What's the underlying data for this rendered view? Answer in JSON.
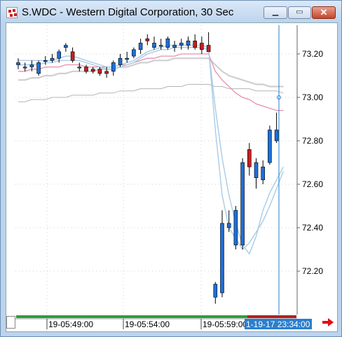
{
  "window": {
    "title": "S.WDC - Western Digital Corporation, 30 Sec",
    "minimize_glyph": "▁",
    "maximize_glyph": "▭",
    "close_glyph": "✕"
  },
  "colors": {
    "up_candle": "#1e6fd6",
    "down_candle": "#c81e1e",
    "ma_fast": "#a9cbe6",
    "ma_pink": "#e58fb0",
    "ma_grey": "#cfcfcf",
    "ma_darkgrey": "#b5b5b5",
    "cursor_line": "#2a7fcf",
    "cursor_label_bg": "#2a7fcf",
    "timebar_green": "#2e9e3a",
    "timebar_red": "#b02020"
  },
  "icons": {
    "scroll_right": "right-arrow-icon",
    "app": "app-icon"
  },
  "chart_data": {
    "type": "candlestick",
    "y_ticks": [
      "73.20",
      "73.00",
      "72.80",
      "72.60",
      "72.40",
      "72.20"
    ],
    "ylim": [
      72.02,
      73.32
    ],
    "x_ticks": [
      "19-05:49:00",
      "19-05:54:00",
      "19-05:59:00"
    ],
    "cursor_label": "1-19-17 23:34:00",
    "grid": true,
    "candles": [
      {
        "o": 73.15,
        "h": 73.18,
        "l": 73.13,
        "c": 73.16
      },
      {
        "o": 73.14,
        "h": 73.16,
        "l": 73.12,
        "c": 73.14
      },
      {
        "o": 73.14,
        "h": 73.17,
        "l": 73.12,
        "c": 73.15
      },
      {
        "o": 73.11,
        "h": 73.17,
        "l": 73.1,
        "c": 73.16
      },
      {
        "o": 73.17,
        "h": 73.19,
        "l": 73.15,
        "c": 73.17
      },
      {
        "o": 73.17,
        "h": 73.2,
        "l": 73.16,
        "c": 73.18
      },
      {
        "o": 73.18,
        "h": 73.22,
        "l": 73.16,
        "c": 73.21
      },
      {
        "o": 73.23,
        "h": 73.25,
        "l": 73.21,
        "c": 73.24
      },
      {
        "o": 73.21,
        "h": 73.23,
        "l": 73.16,
        "c": 73.17
      },
      {
        "o": 73.14,
        "h": 73.16,
        "l": 73.12,
        "c": 73.14
      },
      {
        "o": 73.14,
        "h": 73.15,
        "l": 73.11,
        "c": 73.12
      },
      {
        "o": 73.13,
        "h": 73.14,
        "l": 73.11,
        "c": 73.12
      },
      {
        "o": 73.13,
        "h": 73.14,
        "l": 73.1,
        "c": 73.11
      },
      {
        "o": 73.12,
        "h": 73.14,
        "l": 73.09,
        "c": 73.11
      },
      {
        "o": 73.12,
        "h": 73.17,
        "l": 73.1,
        "c": 73.16
      },
      {
        "o": 73.15,
        "h": 73.2,
        "l": 73.14,
        "c": 73.18
      },
      {
        "o": 73.18,
        "h": 73.21,
        "l": 73.16,
        "c": 73.18
      },
      {
        "o": 73.19,
        "h": 73.23,
        "l": 73.18,
        "c": 73.22
      },
      {
        "o": 73.22,
        "h": 73.27,
        "l": 73.2,
        "c": 73.25
      },
      {
        "o": 73.27,
        "h": 73.29,
        "l": 73.24,
        "c": 73.26
      },
      {
        "o": 73.23,
        "h": 73.28,
        "l": 73.22,
        "c": 73.25
      },
      {
        "o": 73.24,
        "h": 73.27,
        "l": 73.22,
        "c": 73.24
      },
      {
        "o": 73.23,
        "h": 73.28,
        "l": 73.22,
        "c": 73.27
      },
      {
        "o": 73.23,
        "h": 73.26,
        "l": 73.21,
        "c": 73.24
      },
      {
        "o": 73.24,
        "h": 73.27,
        "l": 73.22,
        "c": 73.25
      },
      {
        "o": 73.24,
        "h": 73.28,
        "l": 73.22,
        "c": 73.26
      },
      {
        "o": 73.26,
        "h": 73.29,
        "l": 73.22,
        "c": 73.23
      },
      {
        "o": 73.25,
        "h": 73.28,
        "l": 73.2,
        "c": 73.22
      },
      {
        "o": 73.24,
        "h": 73.3,
        "l": 73.21,
        "c": 73.21
      },
      {
        "o": 72.08,
        "h": 72.15,
        "l": 72.05,
        "c": 72.14
      },
      {
        "o": 72.1,
        "h": 72.48,
        "l": 72.08,
        "c": 72.42
      },
      {
        "o": 72.4,
        "h": 72.48,
        "l": 72.38,
        "c": 72.42
      },
      {
        "o": 72.32,
        "h": 72.5,
        "l": 72.3,
        "c": 72.48
      },
      {
        "o": 72.32,
        "h": 72.72,
        "l": 72.3,
        "c": 72.7
      },
      {
        "o": 72.76,
        "h": 72.79,
        "l": 72.64,
        "c": 72.68
      },
      {
        "o": 72.63,
        "h": 72.72,
        "l": 72.58,
        "c": 72.7
      },
      {
        "o": 72.62,
        "h": 72.71,
        "l": 72.6,
        "c": 72.68
      },
      {
        "o": 72.7,
        "h": 72.87,
        "l": 72.69,
        "c": 72.85
      },
      {
        "o": 72.8,
        "h": 72.93,
        "l": 72.79,
        "c": 72.85
      }
    ],
    "ma_fast": [
      73.17,
      73.17,
      73.17,
      73.17,
      73.17,
      73.17,
      73.18,
      73.19,
      73.19,
      73.18,
      73.17,
      73.16,
      73.15,
      73.14,
      73.14,
      73.15,
      73.16,
      73.17,
      73.19,
      73.21,
      73.22,
      73.23,
      73.24,
      73.24,
      73.24,
      73.24,
      73.24,
      73.24,
      73.23,
      72.85,
      72.55,
      72.4,
      72.35,
      72.3,
      72.33,
      72.38,
      72.43,
      72.5,
      72.58,
      72.66
    ],
    "ma_fast2": [
      73.15,
      73.15,
      73.15,
      73.15,
      73.16,
      73.16,
      73.17,
      73.17,
      73.17,
      73.17,
      73.16,
      73.15,
      73.14,
      73.13,
      73.13,
      73.14,
      73.15,
      73.16,
      73.18,
      73.2,
      73.21,
      73.22,
      73.22,
      73.23,
      73.23,
      73.23,
      73.23,
      73.23,
      73.22,
      72.95,
      72.72,
      72.55,
      72.42,
      72.32,
      72.28,
      72.36,
      72.48,
      72.56,
      72.62,
      72.68
    ],
    "ma_pink": [
      73.12,
      73.12,
      73.13,
      73.13,
      73.14,
      73.14,
      73.14,
      73.15,
      73.15,
      73.15,
      73.14,
      73.14,
      73.14,
      73.14,
      73.14,
      73.15,
      73.15,
      73.16,
      73.17,
      73.18,
      73.18,
      73.19,
      73.19,
      73.19,
      73.2,
      73.2,
      73.2,
      73.2,
      73.2,
      73.12,
      73.08,
      73.05,
      73.02,
      73.0,
      72.99,
      72.97,
      72.96,
      72.95,
      72.94,
      72.94
    ],
    "ma_grey": [
      73.08,
      73.08,
      73.09,
      73.09,
      73.1,
      73.1,
      73.11,
      73.11,
      73.12,
      73.12,
      73.12,
      73.12,
      73.13,
      73.13,
      73.13,
      73.14,
      73.14,
      73.15,
      73.16,
      73.16,
      73.17,
      73.17,
      73.17,
      73.18,
      73.18,
      73.18,
      73.18,
      73.18,
      73.18,
      73.15,
      73.12,
      73.1,
      73.09,
      73.08,
      73.07,
      73.06,
      73.06,
      73.05,
      73.05,
      73.05
    ],
    "ma_darkgrey": [
      72.98,
      72.98,
      72.99,
      72.99,
      72.99,
      73.0,
      73.0,
      73.0,
      73.01,
      73.01,
      73.01,
      73.01,
      73.02,
      73.02,
      73.02,
      73.03,
      73.03,
      73.03,
      73.04,
      73.04,
      73.04,
      73.04,
      73.05,
      73.05,
      73.05,
      73.06,
      73.06,
      73.06,
      73.06,
      73.05,
      73.05,
      73.04,
      73.04,
      73.04,
      73.04,
      73.03,
      73.03,
      73.03,
      73.03,
      73.02
    ]
  }
}
